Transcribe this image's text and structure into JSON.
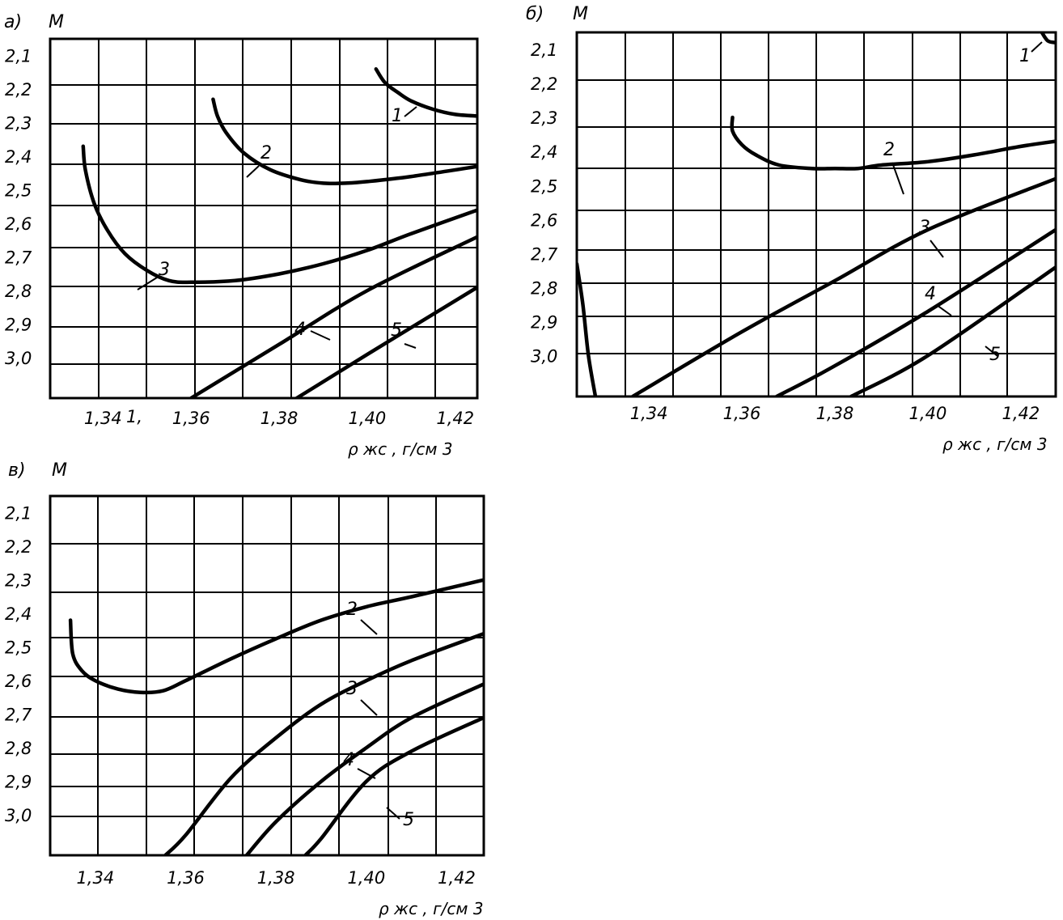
{
  "chart_data": [
    {
      "type": "line",
      "panel_label": "а)",
      "ylabel": "М",
      "xlabel": "ρ жс , г/см 3",
      "stray_label": "1,",
      "xlim": [
        1.328,
        1.425
      ],
      "ylim": [
        2.05,
        3.12
      ],
      "y_inverted": true,
      "x_ticks": [
        "1,34",
        "1,36",
        "1,38",
        "1,40",
        "1,42"
      ],
      "x_tick_values": [
        1.34,
        1.36,
        1.38,
        1.4,
        1.42
      ],
      "y_ticks": [
        "2,1",
        "2,2",
        "2,3",
        "2,4",
        "2,5",
        "2,6",
        "2,7",
        "2,8",
        "2,9",
        "3,0"
      ],
      "y_tick_values": [
        2.1,
        2.2,
        2.3,
        2.4,
        2.5,
        2.6,
        2.7,
        2.8,
        2.9,
        3.0
      ],
      "grid": true,
      "series": [
        {
          "name": "1",
          "x": [
            1.402,
            1.404,
            1.407,
            1.41,
            1.415,
            1.42,
            1.425
          ],
          "y": [
            2.14,
            2.18,
            2.21,
            2.235,
            2.26,
            2.275,
            2.28
          ]
        },
        {
          "name": "2",
          "x": [
            1.365,
            1.366,
            1.368,
            1.372,
            1.378,
            1.385,
            1.39,
            1.395,
            1.4,
            1.41,
            1.425
          ],
          "y": [
            2.23,
            2.28,
            2.33,
            2.39,
            2.44,
            2.47,
            2.48,
            2.48,
            2.475,
            2.46,
            2.43
          ]
        },
        {
          "name": "3",
          "x": [
            1.3355,
            1.336,
            1.338,
            1.341,
            1.345,
            1.35,
            1.355,
            1.36,
            1.37,
            1.38,
            1.39,
            1.4,
            1.41,
            1.425
          ],
          "y": [
            2.37,
            2.44,
            2.54,
            2.62,
            2.69,
            2.74,
            2.77,
            2.775,
            2.77,
            2.75,
            2.72,
            2.68,
            2.63,
            2.56
          ]
        },
        {
          "name": "4",
          "x": [
            1.36,
            1.38,
            1.4,
            1.425
          ],
          "y": [
            3.12,
            2.96,
            2.8,
            2.64
          ]
        },
        {
          "name": "5",
          "x": [
            1.384,
            1.4,
            1.425
          ],
          "y": [
            3.12,
            2.99,
            2.79
          ]
        }
      ]
    },
    {
      "type": "line",
      "panel_label": "б)",
      "ylabel": "М",
      "xlabel": "ρ жс , г/см 3",
      "xlim": [
        1.3245,
        1.4275
      ],
      "ylim": [
        2.05,
        3.12
      ],
      "y_inverted": true,
      "x_ticks": [
        "1,34",
        "1,36",
        "1,38",
        "1,40",
        "1,42"
      ],
      "x_tick_values": [
        1.34,
        1.36,
        1.38,
        1.4,
        1.42
      ],
      "y_ticks": [
        "2,1",
        "2,2",
        "2,3",
        "2,4",
        "2,5",
        "2,6",
        "2,7",
        "2,8",
        "2,9",
        "3,0"
      ],
      "y_tick_values": [
        2.1,
        2.2,
        2.3,
        2.4,
        2.5,
        2.6,
        2.7,
        2.8,
        2.9,
        3.0
      ],
      "grid": true,
      "series": [
        {
          "name": "1",
          "x": [
            1.4245,
            1.4258,
            1.4275
          ],
          "y": [
            2.05,
            2.075,
            2.08
          ]
        },
        {
          "name": "2",
          "x": [
            1.358,
            1.358,
            1.36,
            1.363,
            1.368,
            1.375,
            1.38,
            1.385,
            1.39,
            1.4,
            1.41,
            1.42,
            1.4275
          ],
          "y": [
            2.3,
            2.34,
            2.38,
            2.41,
            2.44,
            2.45,
            2.45,
            2.45,
            2.44,
            2.43,
            2.41,
            2.385,
            2.37
          ]
        },
        {
          "name": "3",
          "x": [
            1.3365,
            1.36,
            1.38,
            1.4,
            1.4275
          ],
          "y": [
            3.12,
            2.93,
            2.78,
            2.63,
            2.48
          ]
        },
        {
          "name": "4",
          "x": [
            1.3675,
            1.38,
            1.4,
            1.4275
          ],
          "y": [
            3.12,
            3.03,
            2.87,
            2.63
          ]
        },
        {
          "name": "5",
          "x": [
            1.3835,
            1.4,
            1.4275
          ],
          "y": [
            3.12,
            3.0,
            2.74
          ]
        },
        {
          "x": [
            1.3245,
            1.3258,
            1.327,
            1.3285
          ],
          "y": [
            2.73,
            2.85,
            3.0,
            3.12
          ]
        }
      ]
    },
    {
      "type": "line",
      "panel_label": "в)",
      "ylabel": "М",
      "xlabel": "ρ жс , г/см 3",
      "xlim": [
        1.33,
        1.426
      ],
      "ylim": [
        2.05,
        3.12
      ],
      "y_inverted": true,
      "x_ticks": [
        "1,34",
        "1,36",
        "1,38",
        "1,40",
        "1,42"
      ],
      "x_tick_values": [
        1.34,
        1.36,
        1.38,
        1.4,
        1.42
      ],
      "y_ticks": [
        "2,1",
        "2,2",
        "2,3",
        "2,4",
        "2,5",
        "2,6",
        "2,7",
        "2,8",
        "2,9",
        "3,0"
      ],
      "y_tick_values": [
        2.1,
        2.2,
        2.3,
        2.4,
        2.5,
        2.6,
        2.7,
        2.8,
        2.9,
        3.0
      ],
      "grid": true,
      "series": [
        {
          "name": "2",
          "x": [
            1.3345,
            1.335,
            1.337,
            1.34,
            1.345,
            1.35,
            1.355,
            1.36,
            1.37,
            1.38,
            1.39,
            1.4,
            1.41,
            1.426
          ],
          "y": [
            2.42,
            2.52,
            2.57,
            2.6,
            2.625,
            2.635,
            2.63,
            2.6,
            2.535,
            2.475,
            2.42,
            2.38,
            2.35,
            2.3
          ]
        },
        {
          "name": "3",
          "x": [
            1.3555,
            1.36,
            1.37,
            1.38,
            1.39,
            1.4,
            1.41,
            1.426
          ],
          "y": [
            3.12,
            3.06,
            2.89,
            2.77,
            2.67,
            2.6,
            2.54,
            2.46
          ]
        },
        {
          "name": "4",
          "x": [
            1.3735,
            1.38,
            1.39,
            1.4,
            1.41,
            1.426
          ],
          "y": [
            3.12,
            3.02,
            2.9,
            2.8,
            2.71,
            2.61
          ]
        },
        {
          "name": "5",
          "x": [
            1.3865,
            1.39,
            1.4,
            1.41,
            1.426
          ],
          "y": [
            3.12,
            3.07,
            2.9,
            2.81,
            2.71
          ]
        }
      ]
    }
  ]
}
